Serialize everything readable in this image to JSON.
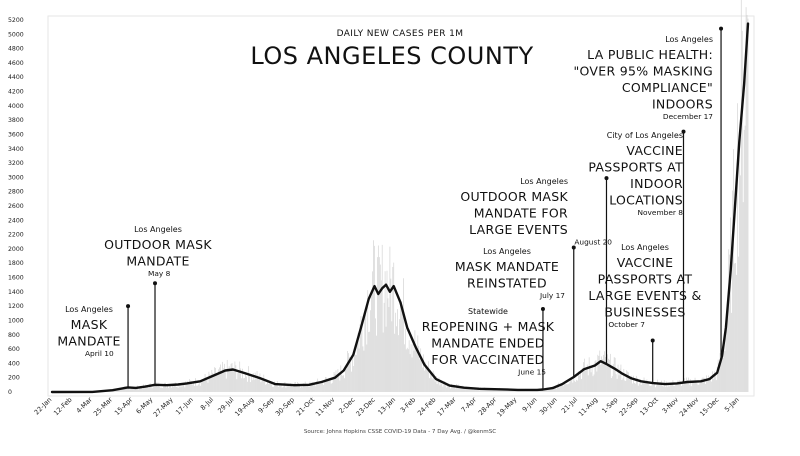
{
  "chart_data": {
    "type": "line",
    "subtitle": "DAILY NEW CASES PER 1M",
    "title": "LOS ANGELES COUNTY",
    "source": "Source: Johns Hopkins CSSE COVID-19 Data - 7 Day Avg. / @kenmSC",
    "xlabel": "",
    "ylabel": "",
    "ylim": [
      0,
      5200
    ],
    "yticks": [
      0,
      200,
      400,
      600,
      800,
      1000,
      1200,
      1400,
      1600,
      1800,
      2000,
      2200,
      2400,
      2600,
      2800,
      3000,
      3200,
      3400,
      3600,
      3800,
      4000,
      4200,
      4400,
      4600,
      4800,
      5000,
      5200
    ],
    "x_start": "2020-01-22",
    "x_end": "2022-01-14",
    "xticks": [
      {
        "label": "22-Jan",
        "date": "2020-01-22"
      },
      {
        "label": "12-Feb",
        "date": "2020-02-12"
      },
      {
        "label": "4-Mar",
        "date": "2020-03-04"
      },
      {
        "label": "25-Mar",
        "date": "2020-03-25"
      },
      {
        "label": "15-Apr",
        "date": "2020-04-15"
      },
      {
        "label": "6-May",
        "date": "2020-05-06"
      },
      {
        "label": "27-May",
        "date": "2020-05-27"
      },
      {
        "label": "17-Jun",
        "date": "2020-06-17"
      },
      {
        "label": "8-Jul",
        "date": "2020-07-08"
      },
      {
        "label": "29-Jul",
        "date": "2020-07-29"
      },
      {
        "label": "19-Aug",
        "date": "2020-08-19"
      },
      {
        "label": "9-Sep",
        "date": "2020-09-09"
      },
      {
        "label": "30-Sep",
        "date": "2020-09-30"
      },
      {
        "label": "21-Oct",
        "date": "2020-10-21"
      },
      {
        "label": "11-Nov",
        "date": "2020-11-11"
      },
      {
        "label": "2-Dec",
        "date": "2020-12-02"
      },
      {
        "label": "23-Dec",
        "date": "2020-12-23"
      },
      {
        "label": "13-Jan",
        "date": "2021-01-13"
      },
      {
        "label": "3-Feb",
        "date": "2021-02-03"
      },
      {
        "label": "24-Feb",
        "date": "2021-02-24"
      },
      {
        "label": "17-Mar",
        "date": "2021-03-17"
      },
      {
        "label": "7-Apr",
        "date": "2021-04-07"
      },
      {
        "label": "28-Apr",
        "date": "2021-04-28"
      },
      {
        "label": "19-May",
        "date": "2021-05-19"
      },
      {
        "label": "9-Jun",
        "date": "2021-06-09"
      },
      {
        "label": "30-Jun",
        "date": "2021-06-30"
      },
      {
        "label": "21-Jul",
        "date": "2021-07-21"
      },
      {
        "label": "11-Aug",
        "date": "2021-08-11"
      },
      {
        "label": "1-Sep",
        "date": "2021-09-01"
      },
      {
        "label": "22-Sep",
        "date": "2021-09-22"
      },
      {
        "label": "13-Oct",
        "date": "2021-10-13"
      },
      {
        "label": "3-Nov",
        "date": "2021-11-03"
      },
      {
        "label": "24-Nov",
        "date": "2021-11-24"
      },
      {
        "label": "15-Dec",
        "date": "2021-12-15"
      },
      {
        "label": "5-Jan",
        "date": "2022-01-05"
      }
    ],
    "series": [
      {
        "color": "#111111",
        "points": [
          [
            "2020-01-22",
            0
          ],
          [
            "2020-03-04",
            2
          ],
          [
            "2020-03-25",
            25
          ],
          [
            "2020-04-10",
            65
          ],
          [
            "2020-04-18",
            58
          ],
          [
            "2020-04-28",
            75
          ],
          [
            "2020-05-08",
            100
          ],
          [
            "2020-05-20",
            95
          ],
          [
            "2020-06-01",
            105
          ],
          [
            "2020-06-10",
            120
          ],
          [
            "2020-06-24",
            150
          ],
          [
            "2020-07-08",
            230
          ],
          [
            "2020-07-20",
            300
          ],
          [
            "2020-07-28",
            315
          ],
          [
            "2020-08-10",
            260
          ],
          [
            "2020-08-25",
            195
          ],
          [
            "2020-09-10",
            110
          ],
          [
            "2020-09-30",
            95
          ],
          [
            "2020-10-15",
            100
          ],
          [
            "2020-10-28",
            140
          ],
          [
            "2020-11-11",
            200
          ],
          [
            "2020-11-20",
            300
          ],
          [
            "2020-11-30",
            520
          ],
          [
            "2020-12-08",
            900
          ],
          [
            "2020-12-16",
            1300
          ],
          [
            "2020-12-22",
            1480
          ],
          [
            "2020-12-26",
            1370
          ],
          [
            "2020-12-30",
            1450
          ],
          [
            "2021-01-03",
            1500
          ],
          [
            "2021-01-07",
            1400
          ],
          [
            "2021-01-11",
            1480
          ],
          [
            "2021-01-18",
            1250
          ],
          [
            "2021-01-25",
            900
          ],
          [
            "2021-02-03",
            620
          ],
          [
            "2021-02-12",
            380
          ],
          [
            "2021-02-24",
            180
          ],
          [
            "2021-03-10",
            90
          ],
          [
            "2021-03-25",
            60
          ],
          [
            "2021-04-10",
            45
          ],
          [
            "2021-05-01",
            38
          ],
          [
            "2021-05-20",
            30
          ],
          [
            "2021-06-09",
            30
          ],
          [
            "2021-06-15",
            35
          ],
          [
            "2021-06-25",
            55
          ],
          [
            "2021-07-05",
            110
          ],
          [
            "2021-07-17",
            210
          ],
          [
            "2021-07-28",
            320
          ],
          [
            "2021-08-08",
            370
          ],
          [
            "2021-08-14",
            430
          ],
          [
            "2021-08-20",
            390
          ],
          [
            "2021-08-28",
            330
          ],
          [
            "2021-09-05",
            260
          ],
          [
            "2021-09-15",
            190
          ],
          [
            "2021-09-25",
            150
          ],
          [
            "2021-10-07",
            125
          ],
          [
            "2021-10-20",
            110
          ],
          [
            "2021-11-01",
            120
          ],
          [
            "2021-11-12",
            140
          ],
          [
            "2021-11-26",
            150
          ],
          [
            "2021-12-05",
            180
          ],
          [
            "2021-12-13",
            270
          ],
          [
            "2021-12-18",
            500
          ],
          [
            "2021-12-22",
            900
          ],
          [
            "2021-12-27",
            1700
          ],
          [
            "2022-01-01",
            2700
          ],
          [
            "2022-01-05",
            3500
          ],
          [
            "2022-01-10",
            4300
          ],
          [
            "2022-01-14",
            5150
          ]
        ]
      }
    ],
    "annotations": [
      {
        "location": "Los Angeles",
        "lines": [
          "MASK",
          "MANDATE"
        ],
        "date_label": "April 10",
        "date": "2020-04-10",
        "top": 1200,
        "y": 60
      },
      {
        "location": "Los Angeles",
        "lines": [
          "OUTDOOR MASK",
          "MANDATE"
        ],
        "date_label": "May 8",
        "date": "2020-05-08",
        "top": 1520,
        "y": 100
      },
      {
        "location": "Statewide",
        "lines": [
          "REOPENING + MASK",
          "MANDATE ENDED",
          "FOR VACCINATED"
        ],
        "date_label": "June 15",
        "date": "2021-06-15",
        "top": 1160,
        "y": 35
      },
      {
        "location": "Los Angeles",
        "lines": [
          "MASK MANDATE",
          "REINSTATED"
        ],
        "date_label": "July 17",
        "date": "2021-07-17",
        "top": 2020,
        "y": 210
      },
      {
        "location": "Los Angeles",
        "lines": [
          "OUTDOOR MASK",
          "MANDATE FOR",
          "LARGE EVENTS"
        ],
        "date_label": "August 20",
        "date": "2021-08-20",
        "top": 2990,
        "y": 390
      },
      {
        "location": "Los Angeles",
        "lines": [
          "VACCINE",
          "PASSPORTS AT",
          "LARGE EVENTS &",
          "BUSINESSES"
        ],
        "date_label": "October 7",
        "date": "2021-10-07",
        "top": 720,
        "y": 125
      },
      {
        "location": "City of Los Angeles",
        "lines": [
          "VACCINE",
          "PASSPORTS AT",
          "INDOOR",
          "LOCATIONS"
        ],
        "date_label": "November 8",
        "date": "2021-11-08",
        "top": 3640,
        "y": 130
      },
      {
        "location": "Los Angeles",
        "lines": [
          "LA PUBLIC HEALTH:",
          "\"OVER 95% MASKING",
          "COMPLIANCE\"",
          "INDOORS"
        ],
        "date_label": "December 17",
        "date": "2021-12-17",
        "top": 5080,
        "y": 460
      }
    ],
    "grid": false,
    "legend": "none"
  }
}
